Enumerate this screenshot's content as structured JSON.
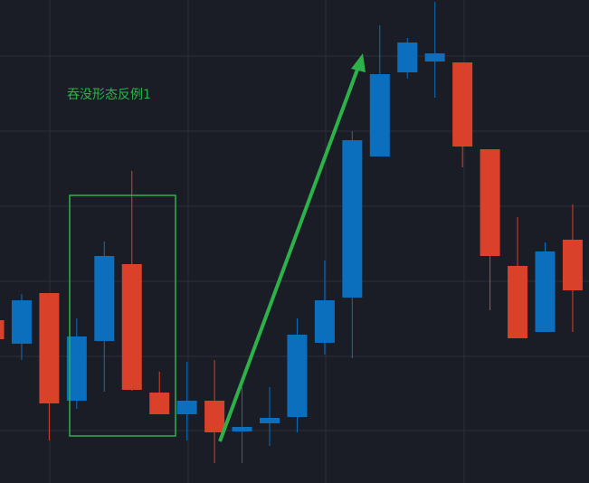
{
  "chart_data": {
    "type": "candlestick",
    "annotation": "吞没形态反例1",
    "open": [
      180,
      154,
      210,
      91,
      157,
      242,
      100,
      76,
      91,
      57,
      66,
      73,
      155,
      205,
      361,
      454,
      466,
      465,
      369,
      240,
      167,
      269
    ],
    "high": [
      180,
      209,
      210,
      182,
      267,
      345,
      123,
      134,
      136,
      106,
      106,
      182,
      246,
      389,
      506,
      492,
      532,
      465,
      369,
      294,
      266,
      308
    ],
    "low": [
      159,
      136,
      47,
      82,
      101,
      102,
      76,
      47,
      22,
      22,
      41,
      56,
      142,
      138,
      361,
      447,
      426,
      349,
      191,
      160,
      167,
      167
    ],
    "close": [
      159,
      202,
      88,
      162,
      251,
      103,
      76,
      91,
      56,
      62,
      72,
      164,
      202,
      379,
      452,
      487,
      475,
      372,
      251,
      160,
      256,
      213
    ],
    "up_color": "#0b6fbe",
    "down_color": "#d9412a",
    "ylim": [
      0,
      534
    ],
    "grid": true
  }
}
